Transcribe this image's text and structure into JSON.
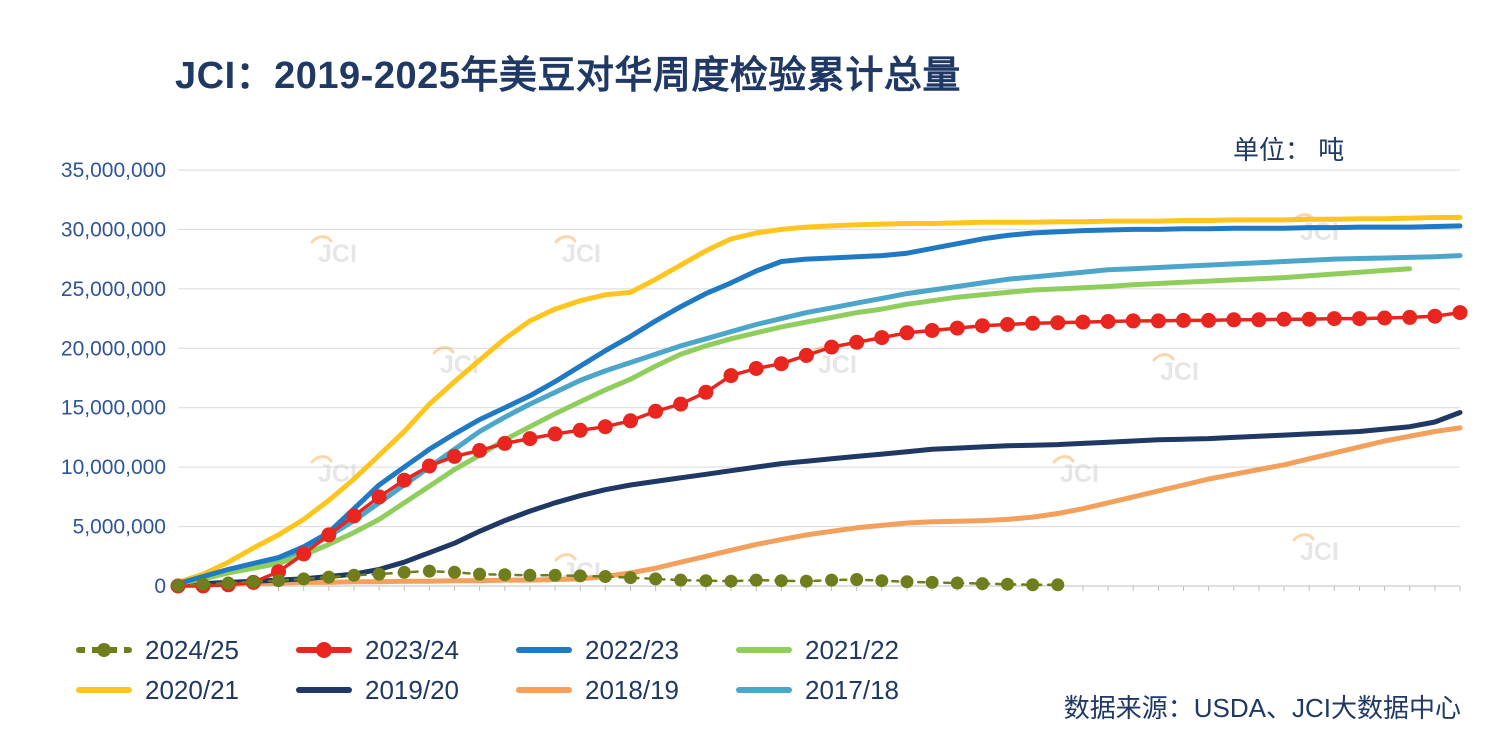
{
  "title": "JCI：2019-2025年美豆对华周度检验累计总量",
  "unit_label": "单位： 吨",
  "source_note": "数据来源：USDA、JCI大数据中心",
  "watermark_text": "JCI",
  "chart_data": {
    "type": "line",
    "title": "JCI：2019-2025年美豆对华周度检验累计总量",
    "unit": "吨",
    "x_count": 52,
    "x_axis_tick_labels": [],
    "ylim": [
      0,
      35000000
    ],
    "ytick_values": [
      0,
      5000000,
      10000000,
      15000000,
      20000000,
      25000000,
      30000000,
      35000000
    ],
    "ytick_labels": [
      "0",
      "5,000,000",
      "10,000,000",
      "15,000,000",
      "20,000,000",
      "25,000,000",
      "30,000,000",
      "35,000,000"
    ],
    "grid": "horizontal",
    "legend_position": "bottom",
    "series": [
      {
        "name": "2024/25",
        "color": "#6F7D1C",
        "marker": true,
        "dash": true,
        "values": [
          50000,
          150000,
          250000,
          350000,
          450000,
          600000,
          750000,
          900000,
          1000000,
          1150000,
          1250000,
          1150000,
          1000000,
          950000,
          900000,
          900000,
          850000,
          800000,
          700000,
          600000,
          500000,
          450000,
          400000,
          500000,
          450000,
          400000,
          500000,
          550000,
          450000,
          350000,
          300000,
          250000,
          200000,
          150000,
          100000,
          100000
        ]
      },
      {
        "name": "2023/24",
        "color": "#E8251F",
        "marker": true,
        "dash": false,
        "values": [
          0,
          0,
          100000,
          300000,
          1200000,
          2700000,
          4300000,
          5900000,
          7500000,
          8900000,
          10100000,
          10900000,
          11400000,
          12000000,
          12400000,
          12800000,
          13100000,
          13400000,
          13900000,
          14700000,
          15300000,
          16300000,
          17700000,
          18300000,
          18700000,
          19400000,
          20100000,
          20500000,
          20900000,
          21300000,
          21500000,
          21700000,
          21900000,
          22000000,
          22100000,
          22150000,
          22200000,
          22250000,
          22300000,
          22300000,
          22350000,
          22350000,
          22400000,
          22400000,
          22450000,
          22450000,
          22500000,
          22500000,
          22550000,
          22600000,
          22700000,
          23000000
        ]
      },
      {
        "name": "2022/23",
        "color": "#2079C3",
        "marker": false,
        "dash": false,
        "values": [
          200000,
          800000,
          1400000,
          1900000,
          2400000,
          3300000,
          4500000,
          6500000,
          8500000,
          10000000,
          11500000,
          12800000,
          14000000,
          15000000,
          16000000,
          17200000,
          18500000,
          19800000,
          21000000,
          22300000,
          23500000,
          24600000,
          25500000,
          26500000,
          27300000,
          27500000,
          27600000,
          27700000,
          27800000,
          28000000,
          28400000,
          28800000,
          29200000,
          29500000,
          29700000,
          29800000,
          29900000,
          29950000,
          30000000,
          30000000,
          30050000,
          30050000,
          30100000,
          30100000,
          30100000,
          30150000,
          30150000,
          30200000,
          30200000,
          30200000,
          30250000,
          30300000
        ]
      },
      {
        "name": "2021/22",
        "color": "#8FCE5C",
        "marker": false,
        "dash": false,
        "values": [
          200000,
          600000,
          1100000,
          1500000,
          1900000,
          2600000,
          3500000,
          4500000,
          5600000,
          7000000,
          8400000,
          9800000,
          11000000,
          12300000,
          13400000,
          14500000,
          15500000,
          16500000,
          17400000,
          18500000,
          19500000,
          20200000,
          20800000,
          21300000,
          21800000,
          22200000,
          22600000,
          23000000,
          23300000,
          23700000,
          24000000,
          24300000,
          24500000,
          24700000,
          24900000,
          25000000,
          25100000,
          25200000,
          25350000,
          25450000,
          25550000,
          25650000,
          25750000,
          25850000,
          25950000,
          26100000,
          26250000,
          26400000,
          26550000,
          26700000
        ]
      },
      {
        "name": "2020/21",
        "color": "#FFC51F",
        "marker": false,
        "dash": false,
        "values": [
          300000,
          1000000,
          2000000,
          3200000,
          4300000,
          5600000,
          7200000,
          9000000,
          11000000,
          13000000,
          15300000,
          17200000,
          19000000,
          20800000,
          22300000,
          23300000,
          24000000,
          24500000,
          24700000,
          25800000,
          27000000,
          28200000,
          29200000,
          29700000,
          30000000,
          30200000,
          30300000,
          30400000,
          30450000,
          30500000,
          30500000,
          30550000,
          30600000,
          30600000,
          30600000,
          30650000,
          30650000,
          30700000,
          30700000,
          30700000,
          30750000,
          30750000,
          30800000,
          30800000,
          30800000,
          30850000,
          30850000,
          30900000,
          30900000,
          30950000,
          31000000,
          31000000
        ]
      },
      {
        "name": "2019/20",
        "color": "#1F3864",
        "marker": false,
        "dash": false,
        "values": [
          100000,
          200000,
          300000,
          400000,
          500000,
          600000,
          800000,
          1000000,
          1400000,
          2000000,
          2800000,
          3600000,
          4600000,
          5500000,
          6300000,
          7000000,
          7600000,
          8100000,
          8500000,
          8800000,
          9100000,
          9400000,
          9700000,
          10000000,
          10300000,
          10500000,
          10700000,
          10900000,
          11100000,
          11300000,
          11500000,
          11600000,
          11700000,
          11800000,
          11850000,
          11900000,
          12000000,
          12100000,
          12200000,
          12300000,
          12350000,
          12400000,
          12500000,
          12600000,
          12700000,
          12800000,
          12900000,
          13000000,
          13200000,
          13400000,
          13800000,
          14600000
        ]
      },
      {
        "name": "2018/19",
        "color": "#F2A05C",
        "marker": false,
        "dash": false,
        "values": [
          50000,
          100000,
          150000,
          200000,
          250000,
          300000,
          300000,
          350000,
          350000,
          400000,
          400000,
          450000,
          450000,
          500000,
          500000,
          550000,
          600000,
          800000,
          1100000,
          1500000,
          2000000,
          2500000,
          3000000,
          3500000,
          3900000,
          4300000,
          4600000,
          4900000,
          5100000,
          5300000,
          5400000,
          5450000,
          5500000,
          5600000,
          5800000,
          6100000,
          6500000,
          7000000,
          7500000,
          8000000,
          8500000,
          9000000,
          9400000,
          9800000,
          10200000,
          10700000,
          11200000,
          11700000,
          12200000,
          12600000,
          13000000,
          13300000
        ]
      },
      {
        "name": "2017/18",
        "color": "#4BA6C9",
        "marker": false,
        "dash": false,
        "values": [
          300000,
          800000,
          1300000,
          1700000,
          2100000,
          3000000,
          4200000,
          5500000,
          7000000,
          8500000,
          10000000,
          11500000,
          13000000,
          14200000,
          15300000,
          16300000,
          17300000,
          18100000,
          18800000,
          19500000,
          20200000,
          20800000,
          21400000,
          22000000,
          22500000,
          23000000,
          23400000,
          23800000,
          24200000,
          24600000,
          24900000,
          25200000,
          25500000,
          25800000,
          26000000,
          26200000,
          26400000,
          26600000,
          26700000,
          26800000,
          26900000,
          27000000,
          27100000,
          27200000,
          27300000,
          27400000,
          27500000,
          27550000,
          27600000,
          27650000,
          27700000,
          27800000
        ]
      }
    ]
  }
}
